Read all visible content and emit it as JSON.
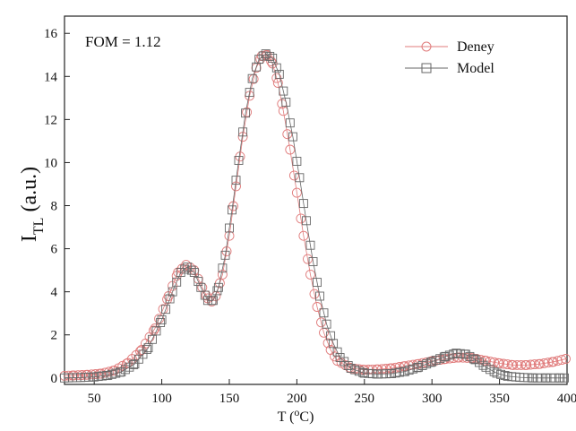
{
  "chart_data": {
    "type": "scatter",
    "xlabel": {
      "main": "T (",
      "sup": "o",
      "unit": "C)"
    },
    "ylabel": {
      "main": "I",
      "sub": "TL",
      "unit": "(a.u.)"
    },
    "annotation": "FOM = 1.12",
    "xlim": [
      28,
      400
    ],
    "ylim": [
      -0.3,
      16.8
    ],
    "xticks": [
      50,
      100,
      150,
      200,
      250,
      300,
      350,
      400
    ],
    "yticks": [
      0,
      2,
      4,
      6,
      8,
      10,
      12,
      14,
      16
    ],
    "grid": false,
    "legend_position": "top-right",
    "series": [
      {
        "name": "Deney",
        "marker": "circle",
        "color": "#e07b7b",
        "points": [
          [
            28,
            0.1
          ],
          [
            35,
            0.12
          ],
          [
            45,
            0.15
          ],
          [
            55,
            0.2
          ],
          [
            65,
            0.35
          ],
          [
            75,
            0.7
          ],
          [
            85,
            1.3
          ],
          [
            95,
            2.3
          ],
          [
            105,
            3.8
          ],
          [
            112,
            4.9
          ],
          [
            118,
            5.25
          ],
          [
            124,
            5.0
          ],
          [
            130,
            4.2
          ],
          [
            134,
            3.7
          ],
          [
            137,
            3.55
          ],
          [
            140,
            3.8
          ],
          [
            145,
            4.8
          ],
          [
            150,
            6.6
          ],
          [
            155,
            8.9
          ],
          [
            160,
            11.2
          ],
          [
            165,
            13.1
          ],
          [
            170,
            14.4
          ],
          [
            174,
            14.95
          ],
          [
            178,
            15.0
          ],
          [
            182,
            14.6
          ],
          [
            186,
            13.7
          ],
          [
            190,
            12.4
          ],
          [
            195,
            10.6
          ],
          [
            200,
            8.6
          ],
          [
            205,
            6.6
          ],
          [
            210,
            4.8
          ],
          [
            215,
            3.3
          ],
          [
            220,
            2.1
          ],
          [
            225,
            1.3
          ],
          [
            230,
            0.8
          ],
          [
            240,
            0.45
          ],
          [
            250,
            0.38
          ],
          [
            260,
            0.4
          ],
          [
            270,
            0.45
          ],
          [
            280,
            0.55
          ],
          [
            290,
            0.65
          ],
          [
            300,
            0.78
          ],
          [
            310,
            0.88
          ],
          [
            320,
            0.95
          ],
          [
            330,
            0.92
          ],
          [
            340,
            0.8
          ],
          [
            350,
            0.68
          ],
          [
            360,
            0.6
          ],
          [
            370,
            0.6
          ],
          [
            380,
            0.65
          ],
          [
            390,
            0.75
          ],
          [
            400,
            0.9
          ]
        ]
      },
      {
        "name": "Model",
        "marker": "square",
        "color": "#666666",
        "points": [
          [
            28,
            0.0
          ],
          [
            40,
            0.02
          ],
          [
            50,
            0.05
          ],
          [
            60,
            0.12
          ],
          [
            70,
            0.28
          ],
          [
            80,
            0.65
          ],
          [
            90,
            1.4
          ],
          [
            100,
            2.7
          ],
          [
            108,
            4.0
          ],
          [
            114,
            4.9
          ],
          [
            119,
            5.15
          ],
          [
            124,
            4.9
          ],
          [
            129,
            4.2
          ],
          [
            134,
            3.6
          ],
          [
            138,
            3.6
          ],
          [
            142,
            4.2
          ],
          [
            147,
            5.7
          ],
          [
            152,
            7.8
          ],
          [
            157,
            10.1
          ],
          [
            162,
            12.3
          ],
          [
            167,
            13.9
          ],
          [
            172,
            14.8
          ],
          [
            177,
            15.05
          ],
          [
            182,
            14.85
          ],
          [
            187,
            14.1
          ],
          [
            192,
            12.8
          ],
          [
            197,
            11.2
          ],
          [
            202,
            9.3
          ],
          [
            207,
            7.3
          ],
          [
            212,
            5.4
          ],
          [
            217,
            3.8
          ],
          [
            222,
            2.5
          ],
          [
            227,
            1.6
          ],
          [
            232,
            0.95
          ],
          [
            240,
            0.45
          ],
          [
            250,
            0.22
          ],
          [
            260,
            0.18
          ],
          [
            270,
            0.2
          ],
          [
            280,
            0.3
          ],
          [
            290,
            0.5
          ],
          [
            300,
            0.75
          ],
          [
            310,
            1.0
          ],
          [
            318,
            1.15
          ],
          [
            325,
            1.1
          ],
          [
            332,
            0.85
          ],
          [
            340,
            0.5
          ],
          [
            348,
            0.22
          ],
          [
            356,
            0.08
          ],
          [
            365,
            0.03
          ],
          [
            375,
            0.0
          ],
          [
            385,
            0.0
          ],
          [
            395,
            0.0
          ],
          [
            400,
            0.0
          ]
        ]
      }
    ]
  }
}
